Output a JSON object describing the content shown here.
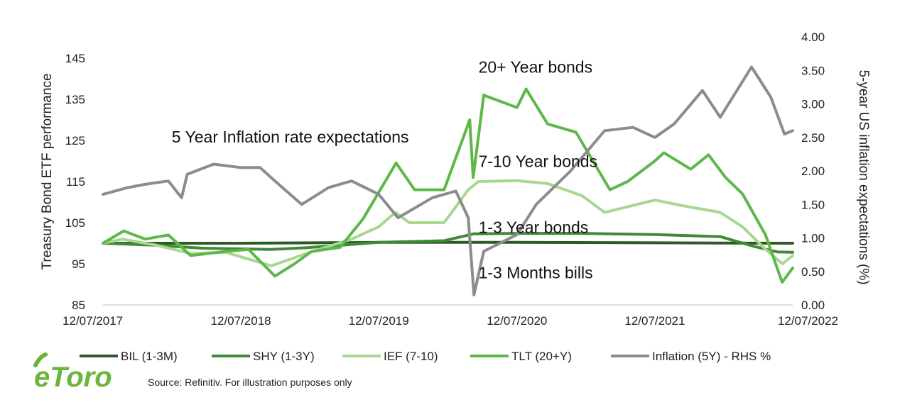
{
  "chart_data": {
    "type": "line",
    "x_dates": [
      "12/07/2017",
      "12/07/2018",
      "12/07/2019",
      "12/07/2020",
      "12/07/2021",
      "12/07/2022"
    ],
    "x_range": [
      "12/07/2017",
      "12/07/2022"
    ],
    "ylabel_left": "Treasury Bond ETF performance",
    "ylabel_right": "5-year US inflation expectations (%)",
    "ylim_left": [
      85,
      145
    ],
    "yticks_left": [
      "145",
      "135",
      "125",
      "115",
      "105",
      "95",
      "85"
    ],
    "ylim_right": [
      0,
      4
    ],
    "yticks_right": [
      "4.00",
      "3.50",
      "3.00",
      "2.50",
      "2.00",
      "1.50",
      "1.00",
      "0.50",
      "0.00"
    ],
    "grid": false,
    "legend_position": "bottom",
    "annotations": [
      {
        "text": "20+ Year bonds",
        "date": "2020-04-01",
        "y": 141.5
      },
      {
        "text": "5 Year Inflation rate expectations",
        "date": "2018-01-10",
        "y": 124.5
      },
      {
        "text": "7-10 Year bonds",
        "date": "2020-04-01",
        "y": 118.5
      },
      {
        "text": "1-3 Year bonds",
        "date": "2020-04-01",
        "y": 102.5
      },
      {
        "text": "1-3 Months bills",
        "date": "2020-04-01",
        "y": 91.5
      }
    ],
    "series": [
      {
        "name": "BIL (1-3M)",
        "color": "#2d5a27",
        "axis": "left",
        "points": [
          [
            "2017-07-12",
            100
          ],
          [
            "2018-07-12",
            100
          ],
          [
            "2019-07-12",
            100.2
          ],
          [
            "2020-07-12",
            100.2
          ],
          [
            "2021-07-12",
            100.1
          ],
          [
            "2022-07-12",
            100
          ]
        ]
      },
      {
        "name": "SHY (1-3Y)",
        "color": "#3f8a36",
        "axis": "left",
        "points": [
          [
            "2017-07-12",
            100
          ],
          [
            "2017-12-01",
            99.5
          ],
          [
            "2018-04-01",
            98.8
          ],
          [
            "2018-10-01",
            98.5
          ],
          [
            "2019-01-01",
            98.9
          ],
          [
            "2019-07-12",
            100.2
          ],
          [
            "2020-01-01",
            100.6
          ],
          [
            "2020-03-20",
            102.3
          ],
          [
            "2020-07-12",
            102.4
          ],
          [
            "2021-01-01",
            102.4
          ],
          [
            "2021-07-12",
            102.1
          ],
          [
            "2022-01-01",
            101.6
          ],
          [
            "2022-04-01",
            99.2
          ],
          [
            "2022-06-01",
            97.9
          ],
          [
            "2022-07-12",
            97.8
          ]
        ]
      },
      {
        "name": "IEF (7-10)",
        "color": "#a8d890",
        "axis": "left",
        "points": [
          [
            "2017-07-12",
            100
          ],
          [
            "2017-09-01",
            101
          ],
          [
            "2017-12-01",
            99.5
          ],
          [
            "2018-03-01",
            97.5
          ],
          [
            "2018-06-01",
            97.8
          ],
          [
            "2018-10-01",
            94.5
          ],
          [
            "2019-01-01",
            97.5
          ],
          [
            "2019-05-01",
            101
          ],
          [
            "2019-07-12",
            104
          ],
          [
            "2019-08-25",
            107.5
          ],
          [
            "2019-10-01",
            105
          ],
          [
            "2020-01-01",
            105
          ],
          [
            "2020-03-05",
            113
          ],
          [
            "2020-04-01",
            115
          ],
          [
            "2020-07-12",
            115.2
          ],
          [
            "2020-10-01",
            114.5
          ],
          [
            "2021-01-01",
            111.5
          ],
          [
            "2021-03-01",
            107.5
          ],
          [
            "2021-07-12",
            110.5
          ],
          [
            "2021-10-01",
            109
          ],
          [
            "2022-01-01",
            107.5
          ],
          [
            "2022-03-01",
            104
          ],
          [
            "2022-05-01",
            98.5
          ],
          [
            "2022-06-15",
            95
          ],
          [
            "2022-07-12",
            97
          ]
        ]
      },
      {
        "name": "TLT (20+Y)",
        "color": "#5cb848",
        "axis": "left",
        "points": [
          [
            "2017-07-12",
            100
          ],
          [
            "2017-09-05",
            103
          ],
          [
            "2017-11-01",
            101
          ],
          [
            "2018-01-01",
            102
          ],
          [
            "2018-03-01",
            97
          ],
          [
            "2018-06-01",
            98
          ],
          [
            "2018-08-01",
            98.5
          ],
          [
            "2018-10-10",
            92
          ],
          [
            "2018-12-01",
            95
          ],
          [
            "2019-01-15",
            98
          ],
          [
            "2019-04-01",
            99
          ],
          [
            "2019-06-01",
            106
          ],
          [
            "2019-08-27",
            119.5
          ],
          [
            "2019-10-15",
            113
          ],
          [
            "2020-01-01",
            113
          ],
          [
            "2020-03-09",
            130
          ],
          [
            "2020-03-18",
            116
          ],
          [
            "2020-04-15",
            136
          ],
          [
            "2020-07-12",
            133
          ],
          [
            "2020-08-05",
            137.5
          ],
          [
            "2020-10-01",
            129
          ],
          [
            "2020-12-15",
            127
          ],
          [
            "2021-03-15",
            113
          ],
          [
            "2021-05-01",
            115
          ],
          [
            "2021-07-12",
            120
          ],
          [
            "2021-08-05",
            122
          ],
          [
            "2021-10-15",
            118
          ],
          [
            "2021-12-01",
            121.5
          ],
          [
            "2022-01-15",
            116
          ],
          [
            "2022-03-01",
            112
          ],
          [
            "2022-05-01",
            102
          ],
          [
            "2022-06-14",
            90.5
          ],
          [
            "2022-07-12",
            94
          ]
        ]
      },
      {
        "name": "Inflation (5Y) - RHS %",
        "color": "#8c8c8c",
        "axis": "right",
        "points": [
          [
            "2017-07-12",
            1.65
          ],
          [
            "2017-09-15",
            1.75
          ],
          [
            "2017-11-01",
            1.8
          ],
          [
            "2018-01-01",
            1.85
          ],
          [
            "2018-02-05",
            1.6
          ],
          [
            "2018-02-20",
            1.95
          ],
          [
            "2018-05-01",
            2.1
          ],
          [
            "2018-07-12",
            2.05
          ],
          [
            "2018-09-01",
            2.05
          ],
          [
            "2018-10-10",
            1.85
          ],
          [
            "2018-12-20",
            1.5
          ],
          [
            "2019-03-01",
            1.75
          ],
          [
            "2019-05-01",
            1.85
          ],
          [
            "2019-07-12",
            1.65
          ],
          [
            "2019-09-01",
            1.3
          ],
          [
            "2019-12-01",
            1.6
          ],
          [
            "2020-02-01",
            1.7
          ],
          [
            "2020-03-05",
            1.3
          ],
          [
            "2020-03-20",
            0.15
          ],
          [
            "2020-04-15",
            0.8
          ],
          [
            "2020-07-12",
            1.05
          ],
          [
            "2020-09-01",
            1.5
          ],
          [
            "2020-12-01",
            2.0
          ],
          [
            "2021-03-01",
            2.6
          ],
          [
            "2021-05-15",
            2.65
          ],
          [
            "2021-07-12",
            2.5
          ],
          [
            "2021-09-01",
            2.7
          ],
          [
            "2021-11-15",
            3.2
          ],
          [
            "2022-01-01",
            2.8
          ],
          [
            "2022-03-25",
            3.55
          ],
          [
            "2022-05-15",
            3.1
          ],
          [
            "2022-06-20",
            2.55
          ],
          [
            "2022-07-12",
            2.6
          ]
        ]
      }
    ]
  },
  "source_text": "Source: Refinitiv. For illustration purposes only",
  "logo_text": "eToro"
}
